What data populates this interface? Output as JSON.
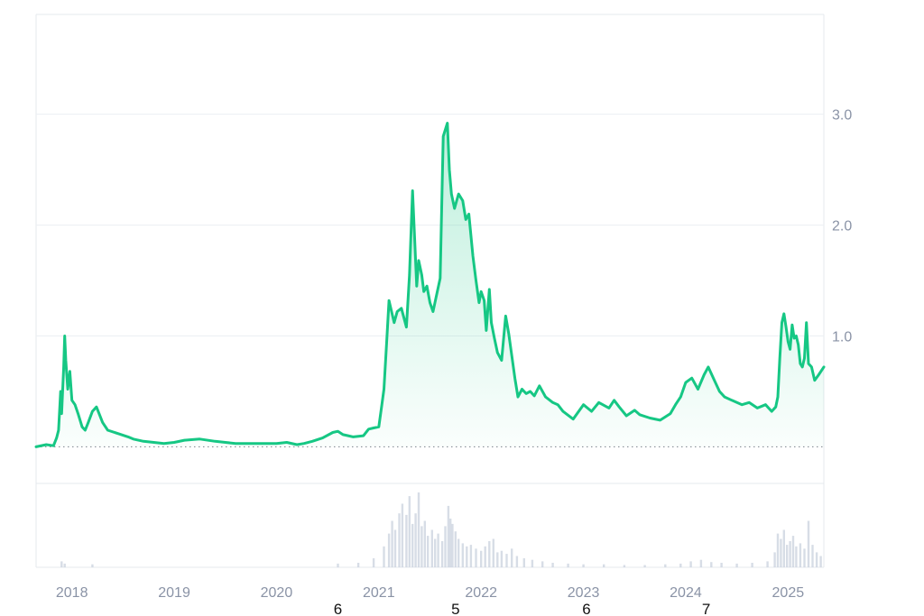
{
  "chart_data": {
    "type": "area",
    "title": "",
    "xlabel": "",
    "ylabel": "",
    "line_color": "#16c784",
    "grid": true,
    "legend": "none",
    "xlim": [
      2017.65,
      2025.35
    ],
    "ylim": [
      -0.33,
      3.9
    ],
    "baseline_value": 0.0,
    "y_ticks": [
      {
        "value": 1.0,
        "label": "1.0"
      },
      {
        "value": 2.0,
        "label": "2.0"
      },
      {
        "value": 3.0,
        "label": "3.0"
      }
    ],
    "x_ticks": [
      {
        "value": 2018,
        "label": "2018"
      },
      {
        "value": 2019,
        "label": "2019"
      },
      {
        "value": 2020,
        "label": "2020"
      },
      {
        "value": 2021,
        "label": "2021"
      },
      {
        "value": 2022,
        "label": "2022"
      },
      {
        "value": 2023,
        "label": "2023"
      },
      {
        "value": 2024,
        "label": "2024"
      },
      {
        "value": 2025,
        "label": "2025"
      }
    ],
    "stray_labels": [
      {
        "x": 2020.6,
        "text": "6"
      },
      {
        "x": 2021.75,
        "text": "5"
      },
      {
        "x": 2023.03,
        "text": "6"
      },
      {
        "x": 2024.2,
        "text": "7"
      }
    ],
    "series": [
      {
        "x": [
          2017.65,
          2017.75,
          2017.82,
          2017.85,
          2017.87,
          2017.89,
          2017.9,
          2017.92,
          2017.93,
          2017.94,
          2017.96,
          2017.98,
          2018.0,
          2018.03,
          2018.06,
          2018.1,
          2018.13,
          2018.16,
          2018.2,
          2018.24,
          2018.3,
          2018.35,
          2018.45,
          2018.55,
          2018.6,
          2018.7,
          2018.8,
          2018.9,
          2019.0,
          2019.1,
          2019.25,
          2019.4,
          2019.5,
          2019.6,
          2019.75,
          2019.9,
          2020.0,
          2020.1,
          2020.2,
          2020.27,
          2020.35,
          2020.45,
          2020.55,
          2020.6,
          2020.65,
          2020.7,
          2020.75,
          2020.85,
          2020.9,
          2020.95,
          2021.0,
          2021.03,
          2021.05,
          2021.08,
          2021.1,
          2021.15,
          2021.18,
          2021.22,
          2021.27,
          2021.3,
          2021.33,
          2021.37,
          2021.39,
          2021.42,
          2021.44,
          2021.47,
          2021.5,
          2021.53,
          2021.56,
          2021.6,
          2021.63,
          2021.67,
          2021.69,
          2021.71,
          2021.74,
          2021.78,
          2021.82,
          2021.85,
          2021.88,
          2021.92,
          2021.95,
          2021.98,
          2022.0,
          2022.03,
          2022.05,
          2022.08,
          2022.1,
          2022.13,
          2022.16,
          2022.2,
          2022.24,
          2022.27,
          2022.3,
          2022.33,
          2022.36,
          2022.4,
          2022.44,
          2022.48,
          2022.52,
          2022.57,
          2022.63,
          2022.7,
          2022.75,
          2022.8,
          2022.9,
          2023.0,
          2023.08,
          2023.15,
          2023.25,
          2023.3,
          2023.35,
          2023.42,
          2023.5,
          2023.55,
          2023.65,
          2023.75,
          2023.85,
          2023.9,
          2023.95,
          2024.0,
          2024.06,
          2024.12,
          2024.18,
          2024.22,
          2024.28,
          2024.33,
          2024.38,
          2024.45,
          2024.55,
          2024.62,
          2024.7,
          2024.78,
          2024.84,
          2024.88,
          2024.9,
          2024.92,
          2024.94,
          2024.96,
          2024.98,
          2025.0,
          2025.02,
          2025.04,
          2025.06,
          2025.08,
          2025.1,
          2025.12,
          2025.14,
          2025.16,
          2025.18,
          2025.2,
          2025.23,
          2025.26,
          2025.3,
          2025.35
        ],
        "values": [
          0.0,
          0.02,
          0.01,
          0.08,
          0.15,
          0.5,
          0.3,
          0.72,
          1.0,
          0.78,
          0.52,
          0.68,
          0.42,
          0.38,
          0.3,
          0.18,
          0.15,
          0.22,
          0.32,
          0.36,
          0.22,
          0.15,
          0.12,
          0.09,
          0.07,
          0.05,
          0.04,
          0.03,
          0.04,
          0.06,
          0.07,
          0.05,
          0.04,
          0.03,
          0.03,
          0.03,
          0.03,
          0.04,
          0.02,
          0.03,
          0.05,
          0.08,
          0.13,
          0.14,
          0.11,
          0.1,
          0.09,
          0.1,
          0.16,
          0.17,
          0.18,
          0.38,
          0.52,
          1.0,
          1.32,
          1.12,
          1.22,
          1.25,
          1.08,
          1.55,
          2.31,
          1.45,
          1.68,
          1.55,
          1.4,
          1.45,
          1.3,
          1.22,
          1.35,
          1.52,
          2.8,
          2.92,
          2.5,
          2.28,
          2.15,
          2.28,
          2.22,
          2.05,
          2.1,
          1.72,
          1.5,
          1.3,
          1.4,
          1.32,
          1.05,
          1.42,
          1.12,
          0.98,
          0.85,
          0.78,
          1.18,
          1.02,
          0.82,
          0.62,
          0.45,
          0.52,
          0.48,
          0.5,
          0.46,
          0.55,
          0.45,
          0.4,
          0.38,
          0.32,
          0.25,
          0.38,
          0.32,
          0.4,
          0.35,
          0.42,
          0.36,
          0.28,
          0.33,
          0.29,
          0.26,
          0.24,
          0.3,
          0.38,
          0.45,
          0.58,
          0.62,
          0.52,
          0.65,
          0.72,
          0.6,
          0.5,
          0.45,
          0.42,
          0.38,
          0.4,
          0.35,
          0.38,
          0.32,
          0.36,
          0.45,
          0.8,
          1.12,
          1.2,
          1.08,
          0.95,
          0.88,
          1.1,
          0.98,
          1.0,
          0.92,
          0.75,
          0.72,
          0.8,
          1.12,
          0.75,
          0.72,
          0.6,
          0.65,
          0.72
        ]
      }
    ],
    "volume": {
      "x": [
        2017.9,
        2017.93,
        2018.2,
        2020.6,
        2020.8,
        2020.95,
        2021.05,
        2021.1,
        2021.13,
        2021.16,
        2021.2,
        2021.23,
        2021.27,
        2021.3,
        2021.33,
        2021.36,
        2021.39,
        2021.42,
        2021.45,
        2021.48,
        2021.52,
        2021.55,
        2021.58,
        2021.62,
        2021.65,
        2021.68,
        2021.7,
        2021.72,
        2021.75,
        2021.78,
        2021.82,
        2021.86,
        2021.9,
        2021.95,
        2022.0,
        2022.04,
        2022.08,
        2022.12,
        2022.16,
        2022.2,
        2022.25,
        2022.3,
        2022.35,
        2022.42,
        2022.5,
        2022.6,
        2022.7,
        2022.85,
        2023.0,
        2023.2,
        2023.4,
        2023.6,
        2023.8,
        2023.95,
        2024.05,
        2024.15,
        2024.25,
        2024.35,
        2024.5,
        2024.65,
        2024.8,
        2024.87,
        2024.9,
        2024.93,
        2024.96,
        2024.99,
        2025.02,
        2025.05,
        2025.08,
        2025.12,
        2025.16,
        2025.2,
        2025.24,
        2025.28,
        2025.32
      ],
      "values": [
        0.08,
        0.05,
        0.04,
        0.05,
        0.06,
        0.12,
        0.28,
        0.45,
        0.62,
        0.5,
        0.72,
        0.85,
        0.7,
        0.95,
        0.58,
        0.72,
        1.0,
        0.55,
        0.62,
        0.42,
        0.5,
        0.38,
        0.45,
        0.35,
        0.55,
        0.82,
        0.65,
        0.58,
        0.48,
        0.38,
        0.32,
        0.28,
        0.3,
        0.25,
        0.22,
        0.28,
        0.35,
        0.38,
        0.2,
        0.22,
        0.18,
        0.25,
        0.15,
        0.12,
        0.1,
        0.08,
        0.06,
        0.05,
        0.04,
        0.04,
        0.03,
        0.03,
        0.04,
        0.05,
        0.08,
        0.1,
        0.07,
        0.06,
        0.05,
        0.06,
        0.08,
        0.2,
        0.45,
        0.38,
        0.5,
        0.3,
        0.35,
        0.42,
        0.28,
        0.32,
        0.25,
        0.62,
        0.3,
        0.2,
        0.15
      ]
    }
  }
}
